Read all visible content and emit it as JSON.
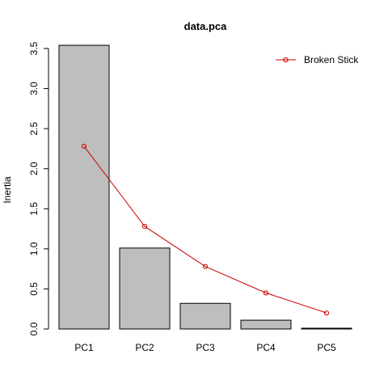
{
  "chart_data": {
    "type": "bar",
    "title": "data.pca",
    "xlabel": "",
    "ylabel": "Inertia",
    "categories": [
      "PC1",
      "PC2",
      "PC3",
      "PC4",
      "PC5"
    ],
    "ylim": [
      0,
      3.5
    ],
    "yticks": [
      "0.0",
      "0.5",
      "1.0",
      "1.5",
      "2.0",
      "2.5",
      "3.0",
      "3.5"
    ],
    "grid": false,
    "legend_position": "top-right",
    "series": [
      {
        "kind": "bar",
        "values": [
          3.54,
          1.01,
          0.32,
          0.11,
          0.01
        ],
        "color": "#bebebe"
      },
      {
        "kind": "line",
        "name": "Broken Stick",
        "values": [
          2.28,
          1.28,
          0.78,
          0.45,
          0.2
        ],
        "color": "#cc0000"
      }
    ]
  }
}
